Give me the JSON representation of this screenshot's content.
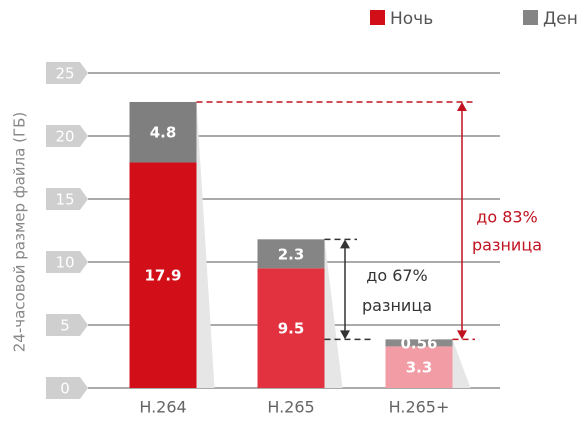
{
  "chart_data": {
    "type": "stacked_bar",
    "y_label": "24-часовой размер файла (ГБ)",
    "categories": [
      "H.264",
      "H.265",
      "H.265+"
    ],
    "series": [
      {
        "name": "Ночь",
        "color": "#d20f18",
        "colors": [
          "#d20f18",
          "#e2323f",
          "#f29ca5"
        ],
        "values": [
          17.9,
          9.5,
          3.3
        ]
      },
      {
        "name": "День",
        "color": "#858585",
        "colors": [
          "#7f7f7f",
          "#858585",
          "#8a8a8a"
        ],
        "values": [
          4.8,
          2.3,
          0.56
        ]
      }
    ],
    "ylim": [
      0,
      25
    ],
    "yticks": [
      0,
      5,
      10,
      15,
      20,
      25
    ],
    "grid": true,
    "annotations": [
      {
        "text": [
          "до 67%",
          "разница"
        ],
        "color": "#333333"
      },
      {
        "text": [
          "до 83%",
          "разница"
        ],
        "color": "#c0121f"
      }
    ]
  }
}
